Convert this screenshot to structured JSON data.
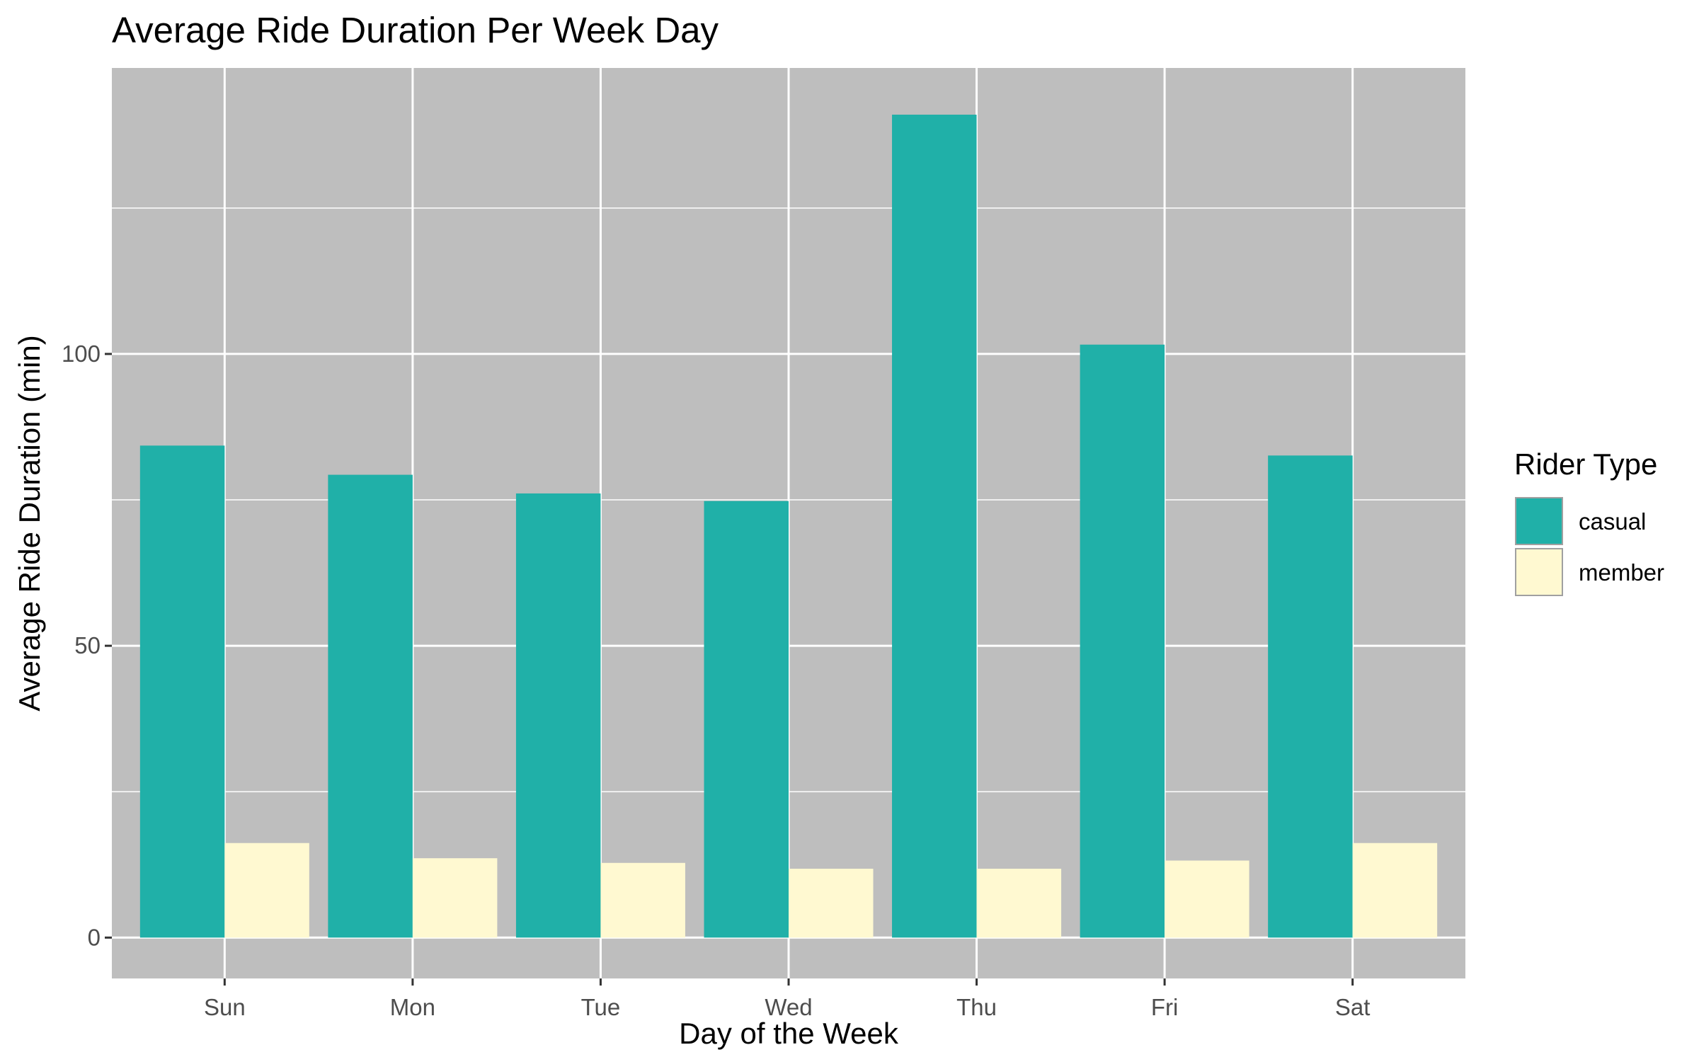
{
  "chart_data": {
    "type": "bar",
    "title": "Average Ride Duration Per Week Day",
    "xlabel": "Day of the Week",
    "ylabel": "Average Ride Duration (min)",
    "categories": [
      "Sun",
      "Mon",
      "Tue",
      "Wed",
      "Thu",
      "Fri",
      "Sat"
    ],
    "series": [
      {
        "name": "casual",
        "color": "#20B0A8",
        "values": [
          84.3,
          79.3,
          76.1,
          74.8,
          141.0,
          101.6,
          82.6
        ]
      },
      {
        "name": "member",
        "color": "#FFF9D1",
        "values": [
          16.2,
          13.6,
          12.8,
          11.8,
          11.8,
          13.2,
          16.2
        ]
      }
    ],
    "ylim": [
      -7,
      149
    ],
    "yticks": [
      0,
      50,
      100
    ],
    "yticks_labels": [
      "0",
      "50",
      "100"
    ],
    "legend": {
      "title": "Rider Type",
      "position": "right"
    },
    "grid": true,
    "panel_color": "#BEBEBE",
    "grid_color": "#FFFFFF"
  }
}
